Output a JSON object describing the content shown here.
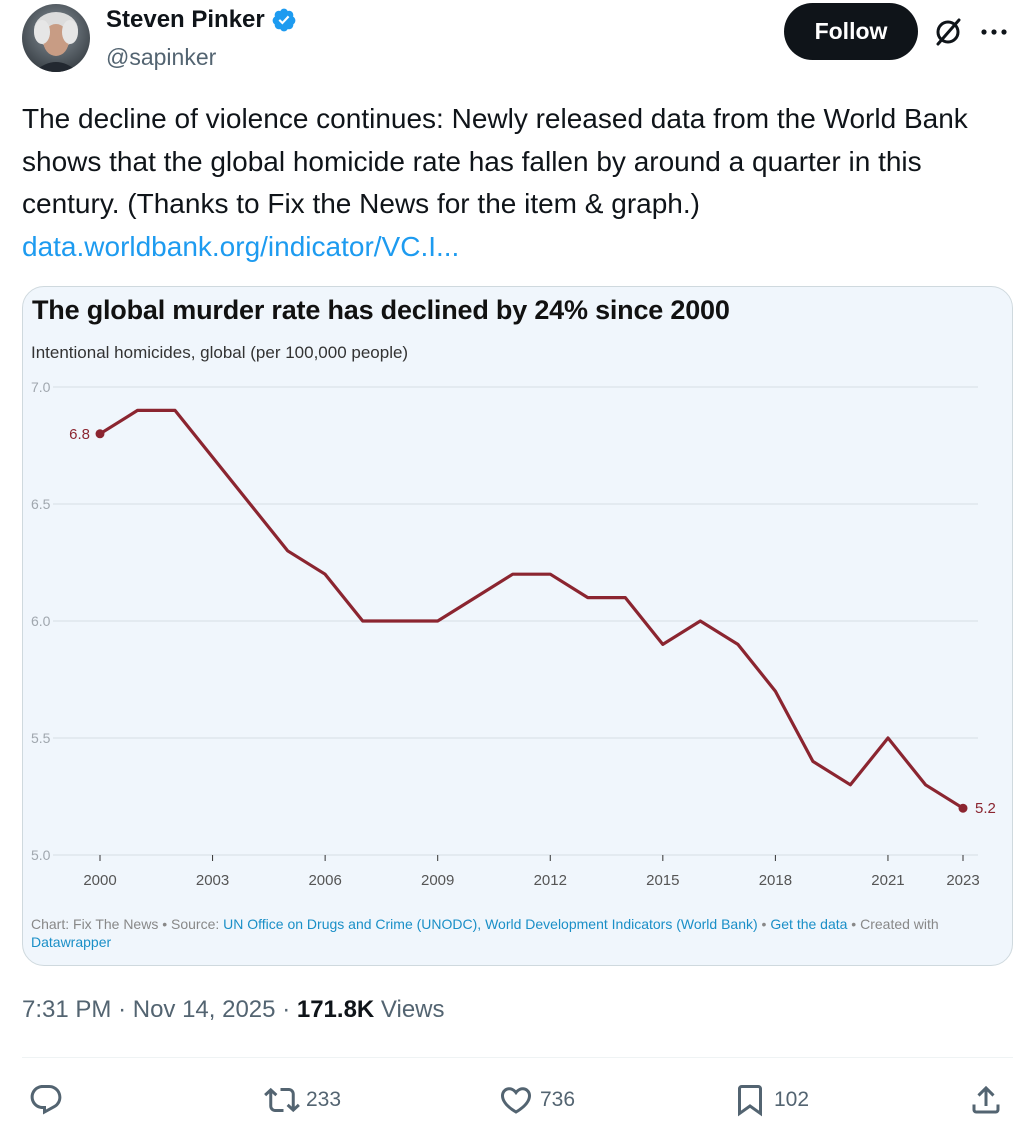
{
  "author": {
    "name": "Steven Pinker",
    "handle": "@sapinker"
  },
  "follow_label": "Follow",
  "tweet": {
    "text": "The decline of violence continues: Newly released data from the World Bank shows that the global homicide rate has fallen by around a quarter in this century. (Thanks to Fix the News for the item & graph.)",
    "link": "data.worldbank.org/indicator/VC.I..."
  },
  "chart": {
    "title": "The global murder rate has declined by 24% since 2000",
    "subtitle": "Intentional homicides, global (per 100,000 people)",
    "footer": {
      "prefix": "Chart: Fix The News • Source: ",
      "source": "UN Office on Drugs and Crime (UNODC), World Development Indicators (World Bank)",
      "sep1": " • ",
      "get_data": "Get the data",
      "sep2": " • Created with ",
      "tool": "Datawrapper"
    }
  },
  "chart_data": {
    "type": "line",
    "title": "The global murder rate has declined by 24% since 2000",
    "subtitle": "Intentional homicides, global (per 100,000 people)",
    "x": [
      2000,
      2001,
      2002,
      2003,
      2004,
      2005,
      2006,
      2007,
      2008,
      2009,
      2010,
      2011,
      2012,
      2013,
      2014,
      2015,
      2016,
      2017,
      2018,
      2019,
      2020,
      2021,
      2022,
      2023
    ],
    "series": [
      {
        "values": [
          6.8,
          6.9,
          6.9,
          6.7,
          6.5,
          6.3,
          6.2,
          6.0,
          6.0,
          6.0,
          6.1,
          6.2,
          6.2,
          6.1,
          6.1,
          5.9,
          6.0,
          5.9,
          5.7,
          5.4,
          5.3,
          5.5,
          5.3,
          5.2
        ],
        "color": "#8b2530"
      }
    ],
    "ylim": [
      5.0,
      7.0
    ],
    "yticks": [
      "5.0",
      "5.5",
      "6.0",
      "6.5",
      "7.0"
    ],
    "xticks": [
      2000,
      2003,
      2006,
      2009,
      2012,
      2015,
      2018,
      2021,
      2023
    ],
    "data_labels": [
      {
        "x": 2000,
        "text": "6.8"
      },
      {
        "x": 2023,
        "text": "5.2"
      }
    ],
    "grid": true,
    "xlabel": "",
    "ylabel": ""
  },
  "timestamp": {
    "time": "7:31 PM",
    "date": "Nov 14, 2025",
    "views": "171.8K",
    "views_label": "Views"
  },
  "actions": {
    "retweets": "233",
    "likes": "736",
    "bookmarks": "102"
  },
  "colors": {
    "accent": "#1d9bf0",
    "line": "#8b2530",
    "panel": "#f0f6fc"
  }
}
